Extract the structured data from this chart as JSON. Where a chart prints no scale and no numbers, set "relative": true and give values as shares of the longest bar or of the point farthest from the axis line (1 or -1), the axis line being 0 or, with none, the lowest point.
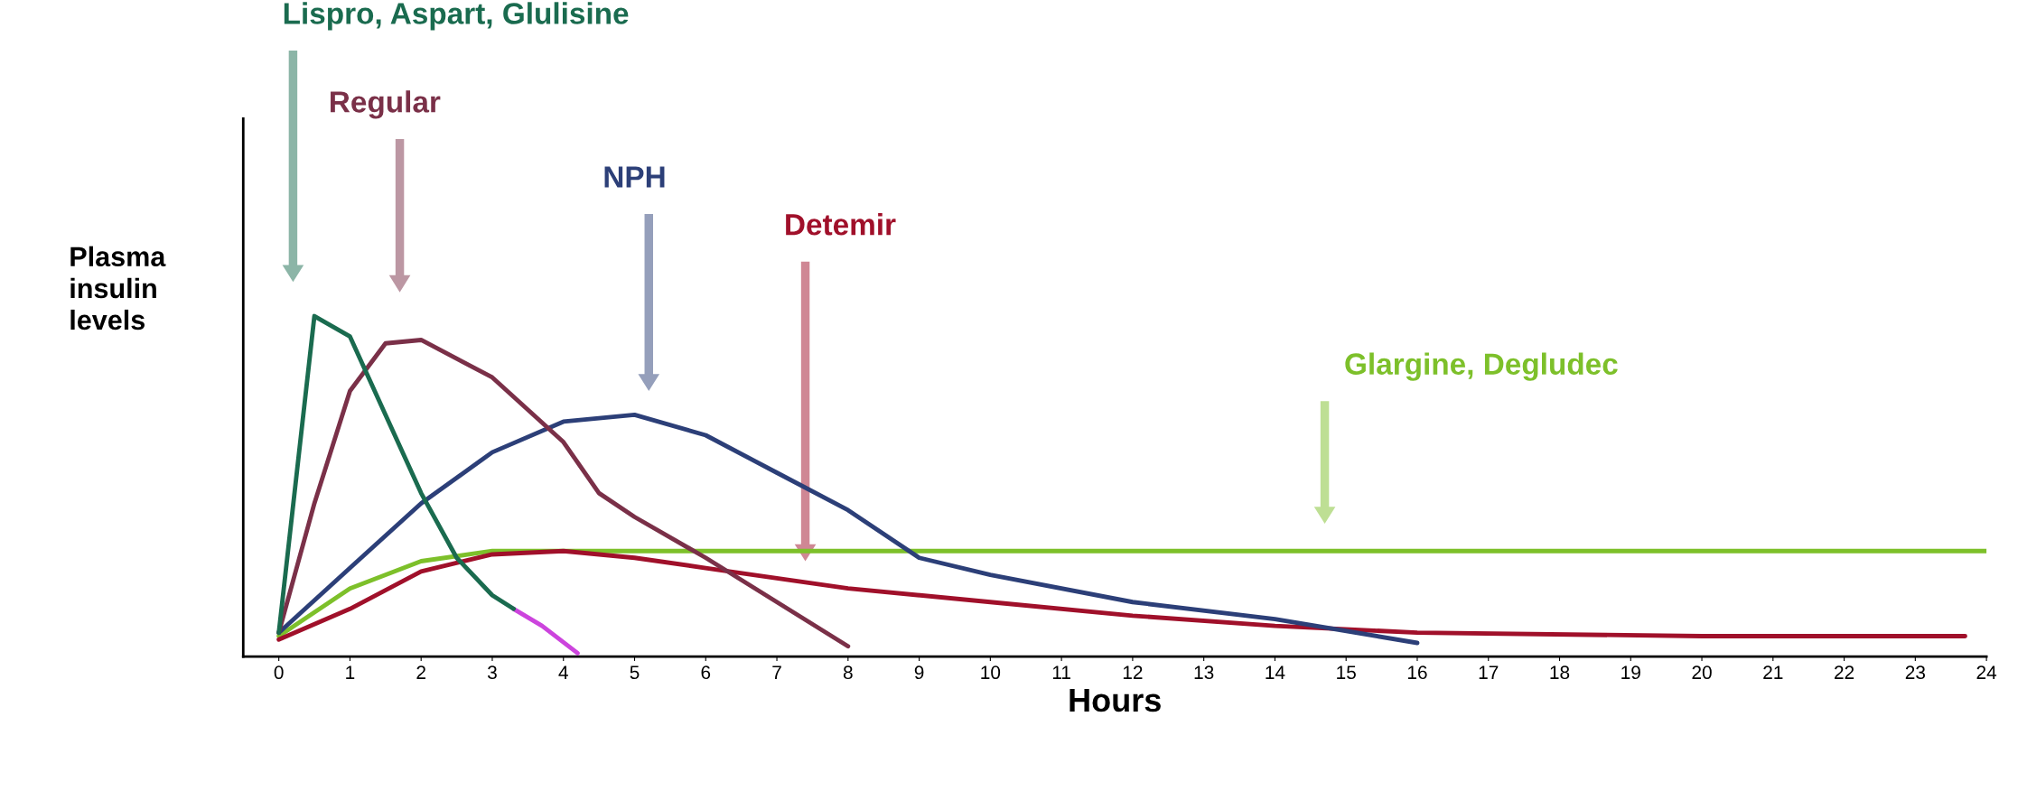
{
  "chart_data": {
    "type": "line",
    "relative": true,
    "xlabel": "Hours",
    "ylabel": "Plasma insulin levels",
    "xlim": [
      -0.5,
      24
    ],
    "xticks": [
      0,
      1,
      2,
      3,
      4,
      5,
      6,
      7,
      8,
      9,
      10,
      11,
      12,
      13,
      14,
      15,
      16,
      17,
      18,
      19,
      20,
      21,
      22,
      23,
      24
    ],
    "grid": false,
    "legend": false,
    "marker": "none",
    "line_style": "solid",
    "series": [
      {
        "color": "#1a6b4f",
        "x": [
          0,
          0.5,
          1,
          1.5,
          2,
          2.5,
          3,
          3.3
        ],
        "values": [
          0.07,
          1.0,
          0.94,
          0.71,
          0.48,
          0.29,
          0.18,
          0.14
        ]
      },
      {
        "color": "#7a3048",
        "x": [
          0,
          0.5,
          1,
          1.5,
          2,
          3,
          4,
          4.5,
          5,
          6,
          7,
          8
        ],
        "values": [
          0.07,
          0.45,
          0.78,
          0.92,
          0.93,
          0.82,
          0.63,
          0.48,
          0.41,
          0.29,
          0.16,
          0.03
        ]
      },
      {
        "color": "#2c3f78",
        "x": [
          0,
          1,
          2,
          3,
          4,
          5,
          6,
          7,
          8,
          9,
          10,
          12,
          14,
          16
        ],
        "values": [
          0.07,
          0.26,
          0.45,
          0.6,
          0.69,
          0.71,
          0.65,
          0.54,
          0.43,
          0.29,
          0.24,
          0.16,
          0.11,
          0.04
        ]
      },
      {
        "color": "#a0102a",
        "x": [
          0,
          1,
          2,
          3,
          4,
          5,
          6,
          8,
          10,
          12,
          14,
          16,
          20,
          23.7
        ],
        "values": [
          0.05,
          0.14,
          0.25,
          0.3,
          0.31,
          0.29,
          0.26,
          0.2,
          0.16,
          0.12,
          0.09,
          0.07,
          0.06,
          0.06
        ]
      },
      {
        "color": "#7dc02a",
        "x": [
          0,
          1,
          2,
          3,
          24
        ],
        "values": [
          0.06,
          0.2,
          0.28,
          0.31,
          0.31
        ]
      },
      {
        "color": "#cc44dd",
        "x": [
          3.3,
          3.7,
          4.2
        ],
        "values": [
          0.14,
          0.09,
          0.01
        ]
      }
    ],
    "annotations": [
      "Lispro, Aspart, Glulisine",
      "Regular",
      "NPH",
      "Detemir",
      "Glargine, Degludec"
    ]
  }
}
